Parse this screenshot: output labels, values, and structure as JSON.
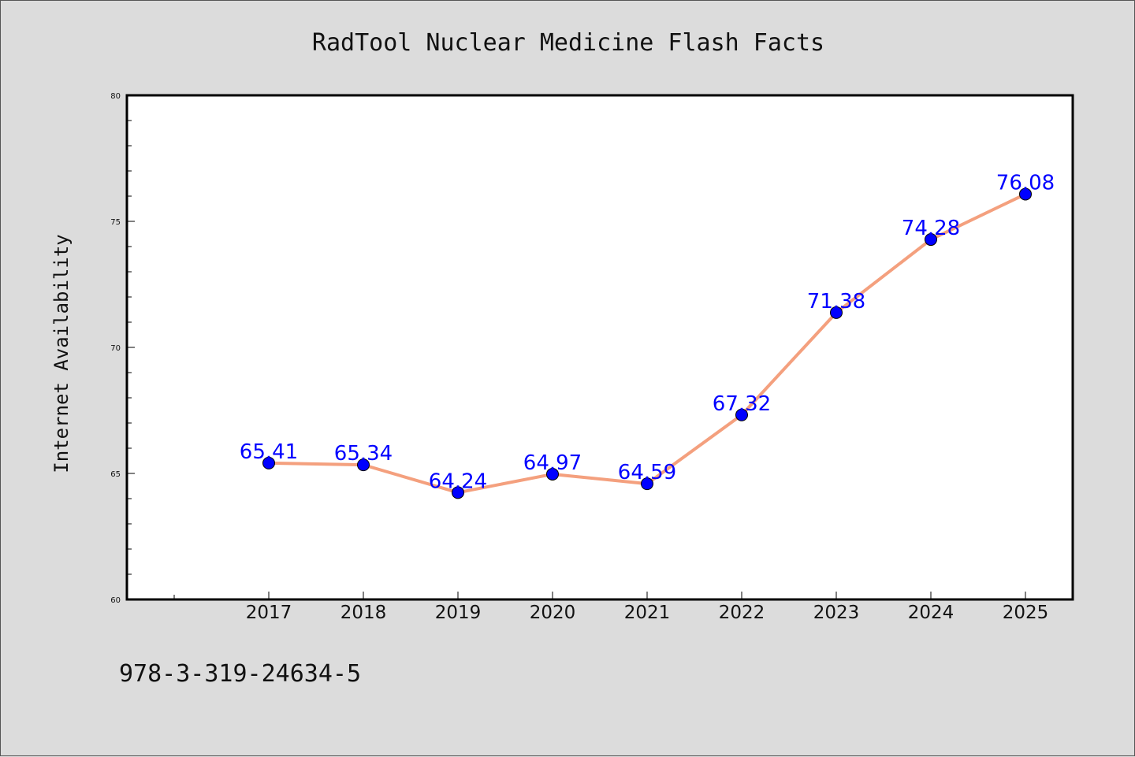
{
  "chart_data": {
    "type": "line",
    "title": "RadTool Nuclear Medicine Flash Facts",
    "xlabel": "",
    "ylabel": "Internet Availability",
    "categories": [
      "2017",
      "2018",
      "2019",
      "2020",
      "2021",
      "2022",
      "2023",
      "2024",
      "2025"
    ],
    "series": [
      {
        "values": [
          65.41,
          65.34,
          64.24,
          64.97,
          64.59,
          67.32,
          71.38,
          74.28,
          76.08
        ],
        "data_labels": [
          "65.41",
          "65.34",
          "64.24",
          "64.97",
          "64.59",
          "67.32",
          "71.38",
          "74.28",
          "76.08"
        ],
        "line_color": "#f4a07e",
        "marker_color": "#0000ff"
      }
    ],
    "ylim": [
      60,
      80
    ],
    "yticks": [
      60,
      65,
      70,
      75,
      80
    ],
    "ytick_labels": [
      "60",
      "65",
      "70",
      "75",
      "80"
    ],
    "grid": false,
    "legend": "none"
  },
  "footer": {
    "text": "978-3-319-24634-5"
  },
  "colors": {
    "background": "#dcdcdc",
    "plot_background": "#ffffff",
    "axis": "#000000"
  }
}
